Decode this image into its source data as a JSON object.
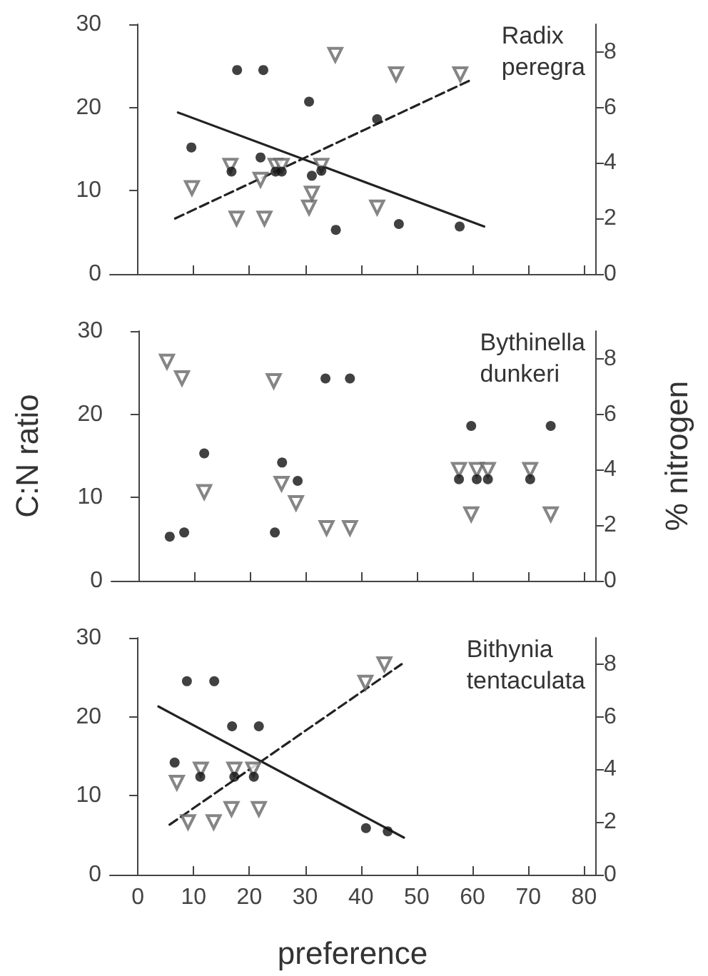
{
  "chart_data": [
    {
      "type": "scatter",
      "annotations": [
        "Radix\nperegra"
      ],
      "xlim": [
        -5,
        82
      ],
      "xticks": [
        0,
        10,
        20,
        30,
        40,
        50,
        60,
        70,
        80
      ],
      "ylim": [
        0,
        30
      ],
      "yticks": [
        0,
        10,
        20,
        30
      ],
      "y2lim": [
        0,
        9
      ],
      "y2ticks": [
        0,
        2,
        4,
        6,
        8
      ],
      "tick_labels": "y",
      "grid": false,
      "series": [
        {
          "marker": "circle",
          "color": "#111111",
          "x": [
            9.6,
            16.8,
            17.8,
            22.5,
            22.0,
            24.7,
            25.8,
            30.7,
            31.2,
            32.9,
            35.5,
            42.9,
            46.8,
            57.7
          ],
          "values": [
            15.2,
            12.3,
            24.5,
            24.5,
            14.0,
            12.3,
            12.3,
            20.7,
            11.8,
            12.4,
            5.3,
            18.6,
            6.0,
            5.7
          ]
        },
        {
          "marker": "triangle",
          "color": "#666666",
          "axis": "y2",
          "x": [
            9.7,
            16.6,
            17.7,
            22.0,
            22.7,
            24.7,
            25.8,
            30.7,
            31.2,
            32.9,
            35.4,
            42.9,
            46.3,
            57.8
          ],
          "values": [
            3.1,
            3.9,
            2.0,
            3.4,
            2.0,
            3.9,
            3.9,
            2.4,
            2.9,
            3.9,
            7.9,
            2.4,
            7.2,
            7.2
          ]
        },
        {
          "type": "line",
          "marker": "none",
          "line_style": "solid",
          "color": "#222222",
          "x": [
            7.2,
            62.1
          ],
          "values": [
            19.4,
            5.7
          ]
        },
        {
          "type": "line",
          "marker": "none",
          "line_style": "dashed",
          "color": "#222222",
          "axis": "y2",
          "x": [
            6.7,
            59.8
          ],
          "values": [
            2.0,
            7.0
          ]
        }
      ]
    },
    {
      "type": "scatter",
      "annotations": [
        "Bythinella\ndunkeri"
      ],
      "ylabel": "C:N ratio",
      "y2label": "% nitrogen",
      "xlim": [
        -5,
        82
      ],
      "xticks": [
        0,
        10,
        20,
        30,
        40,
        50,
        60,
        70,
        80
      ],
      "ylim": [
        0,
        30
      ],
      "yticks": [
        0,
        10,
        20,
        30
      ],
      "y2lim": [
        0,
        9
      ],
      "y2ticks": [
        0,
        2,
        4,
        6,
        8
      ],
      "tick_labels": "y",
      "grid": false,
      "series": [
        {
          "marker": "circle",
          "color": "#111111",
          "x": [
            5.5,
            8.1,
            11.7,
            24.4,
            25.7,
            28.5,
            33.5,
            37.9,
            57.5,
            59.7,
            60.7,
            62.7,
            70.3,
            74.0
          ],
          "values": [
            5.3,
            5.8,
            15.3,
            5.8,
            14.2,
            12.0,
            24.3,
            24.3,
            12.2,
            18.6,
            12.2,
            12.2,
            12.2,
            18.6
          ]
        },
        {
          "marker": "triangle",
          "color": "#666666",
          "axis": "y2",
          "x": [
            5.0,
            7.7,
            11.7,
            24.2,
            25.6,
            28.2,
            33.7,
            37.9,
            57.5,
            59.7,
            60.7,
            62.7,
            70.3,
            74.0
          ],
          "values": [
            7.9,
            7.3,
            3.2,
            7.2,
            3.5,
            2.8,
            1.9,
            1.9,
            4.0,
            2.4,
            4.0,
            4.0,
            4.0,
            2.4
          ]
        }
      ]
    },
    {
      "type": "scatter",
      "annotations": [
        "Bithynia\ntentaculata"
      ],
      "xlabel": "preference",
      "xlim": [
        -5,
        82
      ],
      "xticks": [
        0,
        10,
        20,
        30,
        40,
        50,
        60,
        70,
        80
      ],
      "ylim": [
        0,
        30
      ],
      "yticks": [
        0,
        10,
        20,
        30
      ],
      "y2lim": [
        0,
        9
      ],
      "y2ticks": [
        0,
        2,
        4,
        6,
        8
      ],
      "grid": false,
      "series": [
        {
          "marker": "circle",
          "color": "#111111",
          "x": [
            6.6,
            8.8,
            13.7,
            11.2,
            16.9,
            21.7,
            17.3,
            20.8,
            40.9,
            44.8
          ],
          "values": [
            14.2,
            24.5,
            24.5,
            12.4,
            18.8,
            18.8,
            12.4,
            12.4,
            5.9,
            5.5
          ]
        },
        {
          "marker": "triangle",
          "color": "#666666",
          "axis": "y2",
          "x": [
            7.0,
            11.3,
            9.0,
            13.6,
            16.8,
            17.3,
            20.7,
            21.7,
            40.8,
            44.2
          ],
          "values": [
            3.5,
            4.0,
            2.0,
            2.0,
            2.5,
            4.0,
            4.0,
            2.5,
            7.3,
            8.0
          ]
        },
        {
          "type": "line",
          "marker": "none",
          "line_style": "solid",
          "color": "#222222",
          "x": [
            3.7,
            47.7
          ],
          "values": [
            21.3,
            4.7
          ]
        },
        {
          "type": "line",
          "marker": "none",
          "line_style": "dashed",
          "color": "#222222",
          "axis": "y2",
          "x": [
            5.7,
            47.3
          ],
          "values": [
            1.9,
            8.0
          ]
        }
      ]
    }
  ]
}
